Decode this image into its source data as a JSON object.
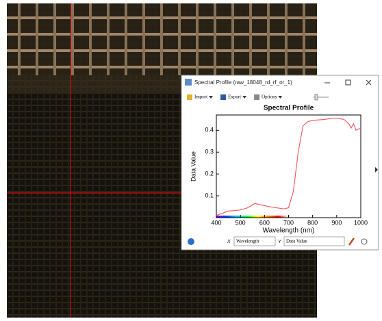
{
  "window": {
    "title": "Spectral Profile (raw_18048_rd_rf_or_1)",
    "toolbar": [
      "Import",
      "Export",
      "Options"
    ],
    "x_axis_label": "X",
    "x_select": "Wavelength",
    "y_axis_label": "Y",
    "y_select": "Data Value"
  },
  "chart_data": {
    "type": "line",
    "title": "Spectral Profile",
    "x_label": "Wavelength (nm)",
    "y_label": "Data Value",
    "x": [
      400,
      450,
      500,
      530,
      560,
      580,
      620,
      680,
      700,
      720,
      740,
      760,
      780,
      800,
      850,
      880,
      900,
      930,
      950,
      960,
      970,
      980,
      1000
    ],
    "values": [
      0.01,
      0.03,
      0.035,
      0.045,
      0.065,
      0.06,
      0.05,
      0.04,
      0.045,
      0.12,
      0.3,
      0.42,
      0.44,
      0.445,
      0.45,
      0.455,
      0.455,
      0.45,
      0.43,
      0.41,
      0.43,
      0.4,
      0.41
    ],
    "color": "#f06060",
    "xlim": [
      400,
      1000
    ],
    "ylim": [
      0,
      0.47
    ],
    "xticks": [
      400,
      500,
      600,
      700,
      800,
      900,
      1000
    ],
    "yticks": [
      0.1,
      0.2,
      0.3,
      0.4
    ]
  }
}
